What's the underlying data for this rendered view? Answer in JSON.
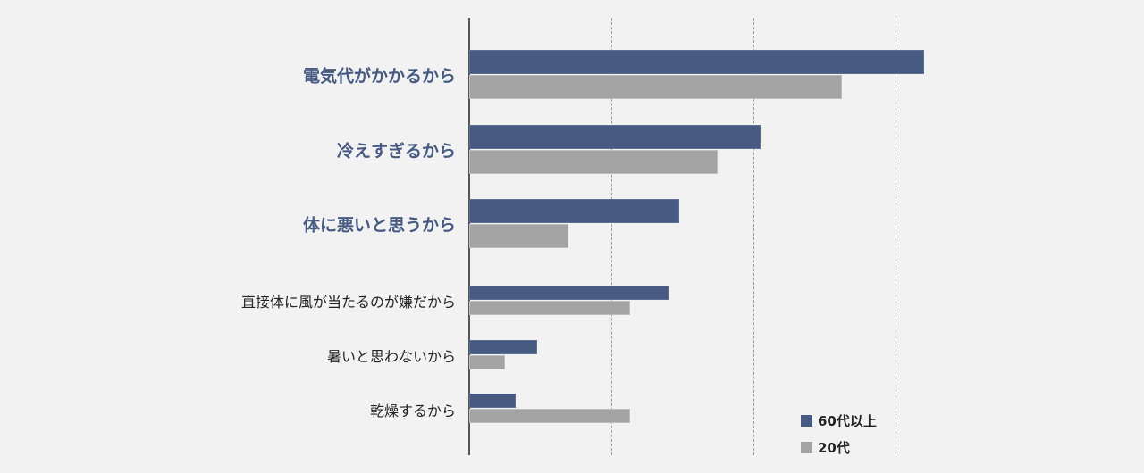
{
  "chart_data": {
    "type": "bar",
    "orientation": "horizontal",
    "title": "",
    "xlabel": "",
    "ylabel": "",
    "categories": [
      "電気代がかかるから",
      "冷えすぎるから",
      "体に悪いと思うから",
      "直接体に風が当たるのが嫌だから",
      "暑いと思わないから",
      "乾燥するから"
    ],
    "highlighted_categories": [
      0,
      1,
      2
    ],
    "series": [
      {
        "name": "60代以上",
        "color": "#475a82",
        "values": [
          32.0,
          20.5,
          14.8,
          14.0,
          4.8,
          3.3
        ]
      },
      {
        "name": "20代",
        "color": "#a3a3a3",
        "values": [
          26.2,
          17.5,
          7.0,
          11.3,
          2.5,
          11.3
        ]
      }
    ],
    "xlim": [
      0,
      40
    ],
    "gridlines_x": [
      10,
      20,
      30
    ],
    "grid": true,
    "tick_labels_visible": false,
    "value_units_note": "Relative scale; one gridline interval = 10 units (no axis numbers shown)",
    "legend_position": "bottom-right"
  },
  "legend": {
    "items": [
      {
        "label": "60代以上",
        "color": "#475a82"
      },
      {
        "label": "20代",
        "color": "#a3a3a3"
      }
    ]
  }
}
